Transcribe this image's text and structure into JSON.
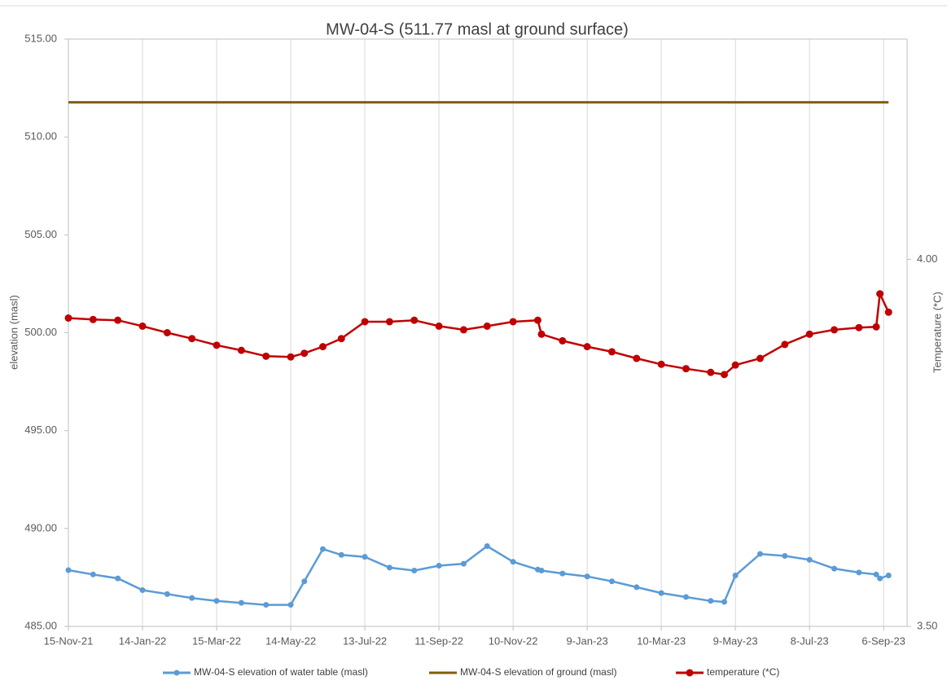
{
  "chart_data": {
    "type": "line",
    "title": "MW-04-S (511.77  masl at ground surface)",
    "y_label": "elevation (masl)",
    "y2_label": "Temperature (*C)",
    "xlim": [
      "2021-11-15",
      "2023-09-25"
    ],
    "xticks": [
      {
        "value": "2021-11-15",
        "label": "15-Nov-21"
      },
      {
        "value": "2022-01-14",
        "label": "14-Jan-22"
      },
      {
        "value": "2022-03-15",
        "label": "15-Mar-22"
      },
      {
        "value": "2022-05-14",
        "label": "14-May-22"
      },
      {
        "value": "2022-07-13",
        "label": "13-Jul-22"
      },
      {
        "value": "2022-09-11",
        "label": "11-Sep-22"
      },
      {
        "value": "2022-11-10",
        "label": "10-Nov-22"
      },
      {
        "value": "2023-01-09",
        "label": "9-Jan-23"
      },
      {
        "value": "2023-03-10",
        "label": "10-Mar-23"
      },
      {
        "value": "2023-05-09",
        "label": "9-May-23"
      },
      {
        "value": "2023-07-08",
        "label": "8-Jul-23"
      },
      {
        "value": "2023-09-06",
        "label": "6-Sep-23"
      }
    ],
    "ylim": [
      485,
      515
    ],
    "yticks": [
      {
        "value": 485,
        "label": "485.00"
      },
      {
        "value": 490,
        "label": "490.00"
      },
      {
        "value": 495,
        "label": "495.00"
      },
      {
        "value": 500,
        "label": "500.00"
      },
      {
        "value": 505,
        "label": "505.00"
      },
      {
        "value": 510,
        "label": "510.00"
      },
      {
        "value": 515,
        "label": "515.00"
      }
    ],
    "y2lim": [
      3.5,
      4.3
    ],
    "y2ticks": [
      {
        "value": 3.5,
        "label": "3.50"
      },
      {
        "value": 4.0,
        "label": "4.00"
      }
    ],
    "grid": "x",
    "legend": "bottom",
    "series": [
      {
        "name": "MW-04-S elevation of water table (masl)",
        "color": "#5b9bd5",
        "marker": true,
        "x": [
          "2021-11-15",
          "2021-12-05",
          "2021-12-25",
          "2022-01-14",
          "2022-02-03",
          "2022-02-23",
          "2022-03-15",
          "2022-04-04",
          "2022-04-24",
          "2022-05-14",
          "2022-05-25",
          "2022-06-09",
          "2022-06-24",
          "2022-07-13",
          "2022-08-02",
          "2022-08-22",
          "2022-09-11",
          "2022-10-01",
          "2022-10-20",
          "2022-11-10",
          "2022-11-30",
          "2022-12-03",
          "2022-12-20",
          "2023-01-09",
          "2023-01-29",
          "2023-02-18",
          "2023-03-10",
          "2023-03-30",
          "2023-04-19",
          "2023-04-30",
          "2023-05-09",
          "2023-05-29",
          "2023-06-18",
          "2023-07-08",
          "2023-07-28",
          "2023-08-17",
          "2023-08-31",
          "2023-09-03",
          "2023-09-10"
        ],
        "values": [
          487.87,
          487.65,
          487.45,
          486.85,
          486.65,
          486.45,
          486.3,
          486.2,
          486.1,
          486.1,
          487.3,
          488.95,
          488.65,
          488.55,
          488.0,
          487.85,
          488.1,
          488.2,
          489.1,
          488.3,
          487.9,
          487.85,
          487.7,
          487.55,
          487.3,
          487.0,
          486.7,
          486.5,
          486.3,
          486.25,
          487.6,
          488.7,
          488.6,
          488.4,
          487.95,
          487.75,
          487.65,
          487.45,
          487.6
        ]
      },
      {
        "name": "MW-04-S elevation of ground (masl)",
        "color": "#7f6000",
        "marker": false,
        "x": [
          "2021-11-15",
          "2023-09-10"
        ],
        "values": [
          511.77,
          511.77
        ]
      },
      {
        "name": "temperature (*C)",
        "color": "#c00000",
        "marker": true,
        "axis": "y2",
        "x": [
          "2021-11-15",
          "2021-12-05",
          "2021-12-25",
          "2022-01-14",
          "2022-02-03",
          "2022-02-23",
          "2022-03-15",
          "2022-04-04",
          "2022-04-24",
          "2022-05-14",
          "2022-05-25",
          "2022-06-09",
          "2022-06-24",
          "2022-07-13",
          "2022-08-02",
          "2022-08-22",
          "2022-09-11",
          "2022-10-01",
          "2022-10-20",
          "2022-11-10",
          "2022-11-30",
          "2022-12-03",
          "2022-12-20",
          "2023-01-09",
          "2023-01-29",
          "2023-02-18",
          "2023-03-10",
          "2023-03-30",
          "2023-04-19",
          "2023-04-30",
          "2023-05-09",
          "2023-05-29",
          "2023-06-18",
          "2023-07-08",
          "2023-07-28",
          "2023-08-17",
          "2023-08-31",
          "2023-09-03",
          "2023-09-10"
        ],
        "values": [
          3.92,
          3.918,
          3.917,
          3.909,
          3.9,
          3.892,
          3.883,
          3.876,
          3.868,
          3.867,
          3.872,
          3.881,
          3.892,
          3.915,
          3.915,
          3.917,
          3.909,
          3.904,
          3.909,
          3.915,
          3.917,
          3.898,
          3.889,
          3.881,
          3.874,
          3.865,
          3.857,
          3.851,
          3.846,
          3.843,
          3.856,
          3.865,
          3.884,
          3.898,
          3.904,
          3.907,
          3.908,
          3.953,
          3.928
        ]
      }
    ]
  }
}
